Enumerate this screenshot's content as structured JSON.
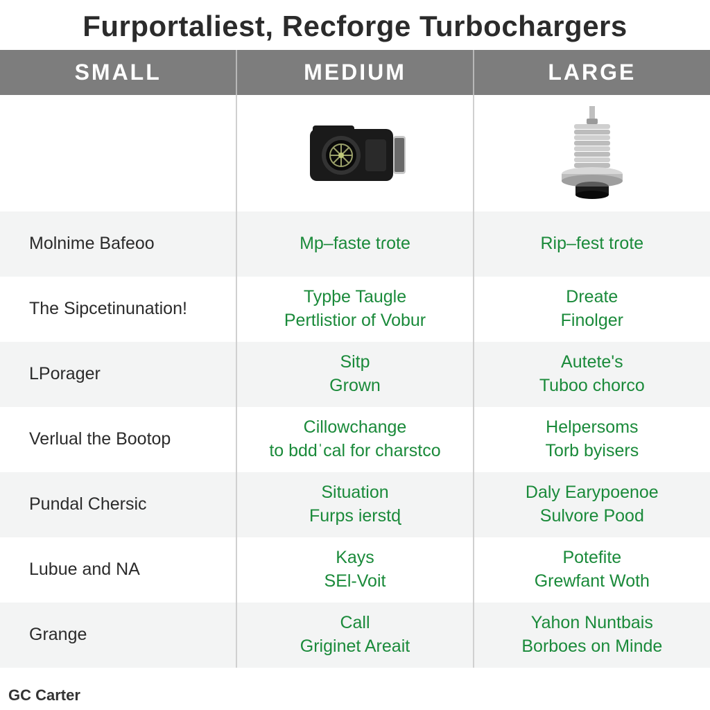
{
  "title": "Furportaliest, Recforge Turbochargers",
  "title_fontsize": 42,
  "title_color": "#2b2b2b",
  "header_bg": "#7d7d7d",
  "header_fontsize": 32,
  "col1_text_color": "#2b2b2b",
  "value_text_color": "#1a8a3a",
  "cell_fontsize": 25,
  "row_alt_bg": "#f3f4f4",
  "divider_color": "#d0d0d0",
  "columns": [
    "SMALL",
    "MEDIUM",
    "LARGE"
  ],
  "rows": [
    {
      "label": "Molnime Bafeoo",
      "medium": "Mp–faste tɾote",
      "large": "Rip–fest tɾote"
    },
    {
      "label": "The Sipcetinunation!",
      "medium": "Typþe Taugle\nPertlistior of Vobur",
      "large": "Dreate\nFinolger"
    },
    {
      "label": "LPorager",
      "medium": "Sitp\nGrown",
      "large": "Autete's\nTuboo chorco"
    },
    {
      "label": "Verlual the Bootop",
      "medium": "Cillowchange\nto bddˈcal for charstco",
      "large": "Helpersoms\nTorb byisers"
    },
    {
      "label": "Pundal Chersic",
      "medium": "Situation\nFurps ierstɖ",
      "large": "Daly Earypoenoe\nSulvore Pood"
    },
    {
      "label": "Lubue and NA",
      "medium": "Kays\nSEl-Voit",
      "large": "Potefite\nGrewfant Woth"
    },
    {
      "label": "Grange",
      "medium": "Call\nGriginet Areait",
      "large": "Yahon Nuntbais\nBorboes on Minde"
    }
  ],
  "attribution": "GC Carter",
  "attribution_fontsize": 22,
  "icons": {
    "medium": "camera-turbo",
    "large": "metal-plug"
  }
}
